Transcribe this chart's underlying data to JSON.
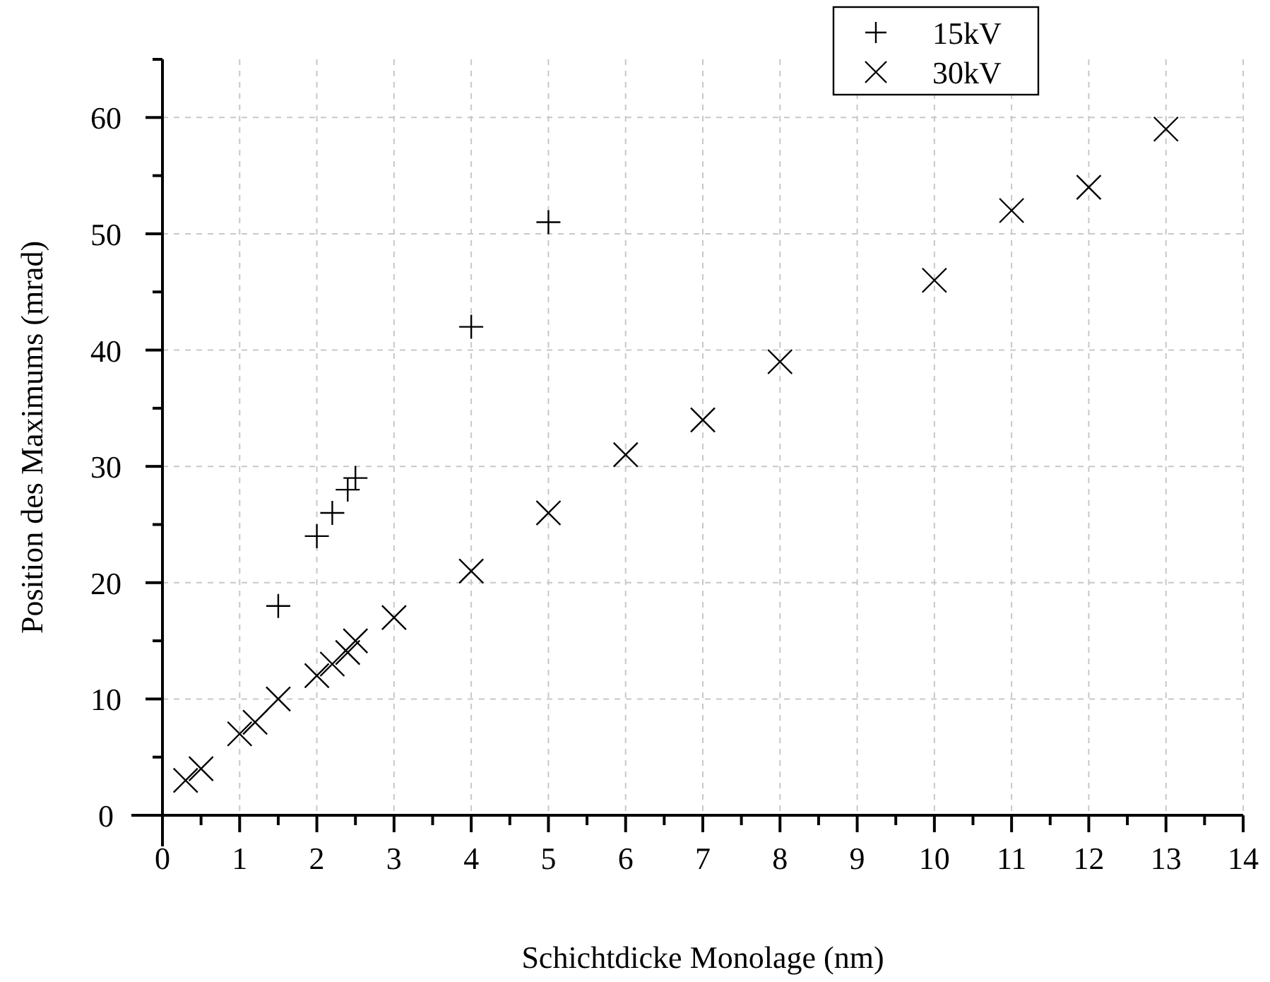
{
  "chart_data": {
    "type": "scatter",
    "xlabel": "Schichtdicke Monolage (nm)",
    "ylabel": "Position des Maximums (mrad)",
    "xlim": [
      0,
      14
    ],
    "ylim": [
      0,
      65
    ],
    "xticks": [
      0,
      1,
      2,
      3,
      4,
      5,
      6,
      7,
      8,
      9,
      10,
      11,
      12,
      13,
      14
    ],
    "yticks": [
      0,
      10,
      20,
      30,
      40,
      50,
      60
    ],
    "grid": true,
    "legend": "top right",
    "series": [
      {
        "name": "15kV",
        "color": "#000000",
        "marker": "cross",
        "x": [
          1.5,
          2,
          2.2,
          2.4,
          2.5,
          4,
          5
        ],
        "values": [
          18,
          24,
          26,
          28,
          29,
          42,
          51
        ]
      },
      {
        "name": "30kV",
        "color": "#000000",
        "marker": "x",
        "x": [
          0.3,
          0.5,
          1,
          1.2,
          1.5,
          2,
          2.2,
          2.4,
          2.5,
          3,
          4,
          5,
          6,
          7,
          8,
          10,
          11,
          12,
          13
        ],
        "values": [
          3,
          4,
          7,
          8,
          10,
          12,
          13,
          14,
          15,
          17,
          21,
          26,
          31,
          34,
          39,
          46,
          52,
          54,
          59
        ]
      }
    ]
  }
}
